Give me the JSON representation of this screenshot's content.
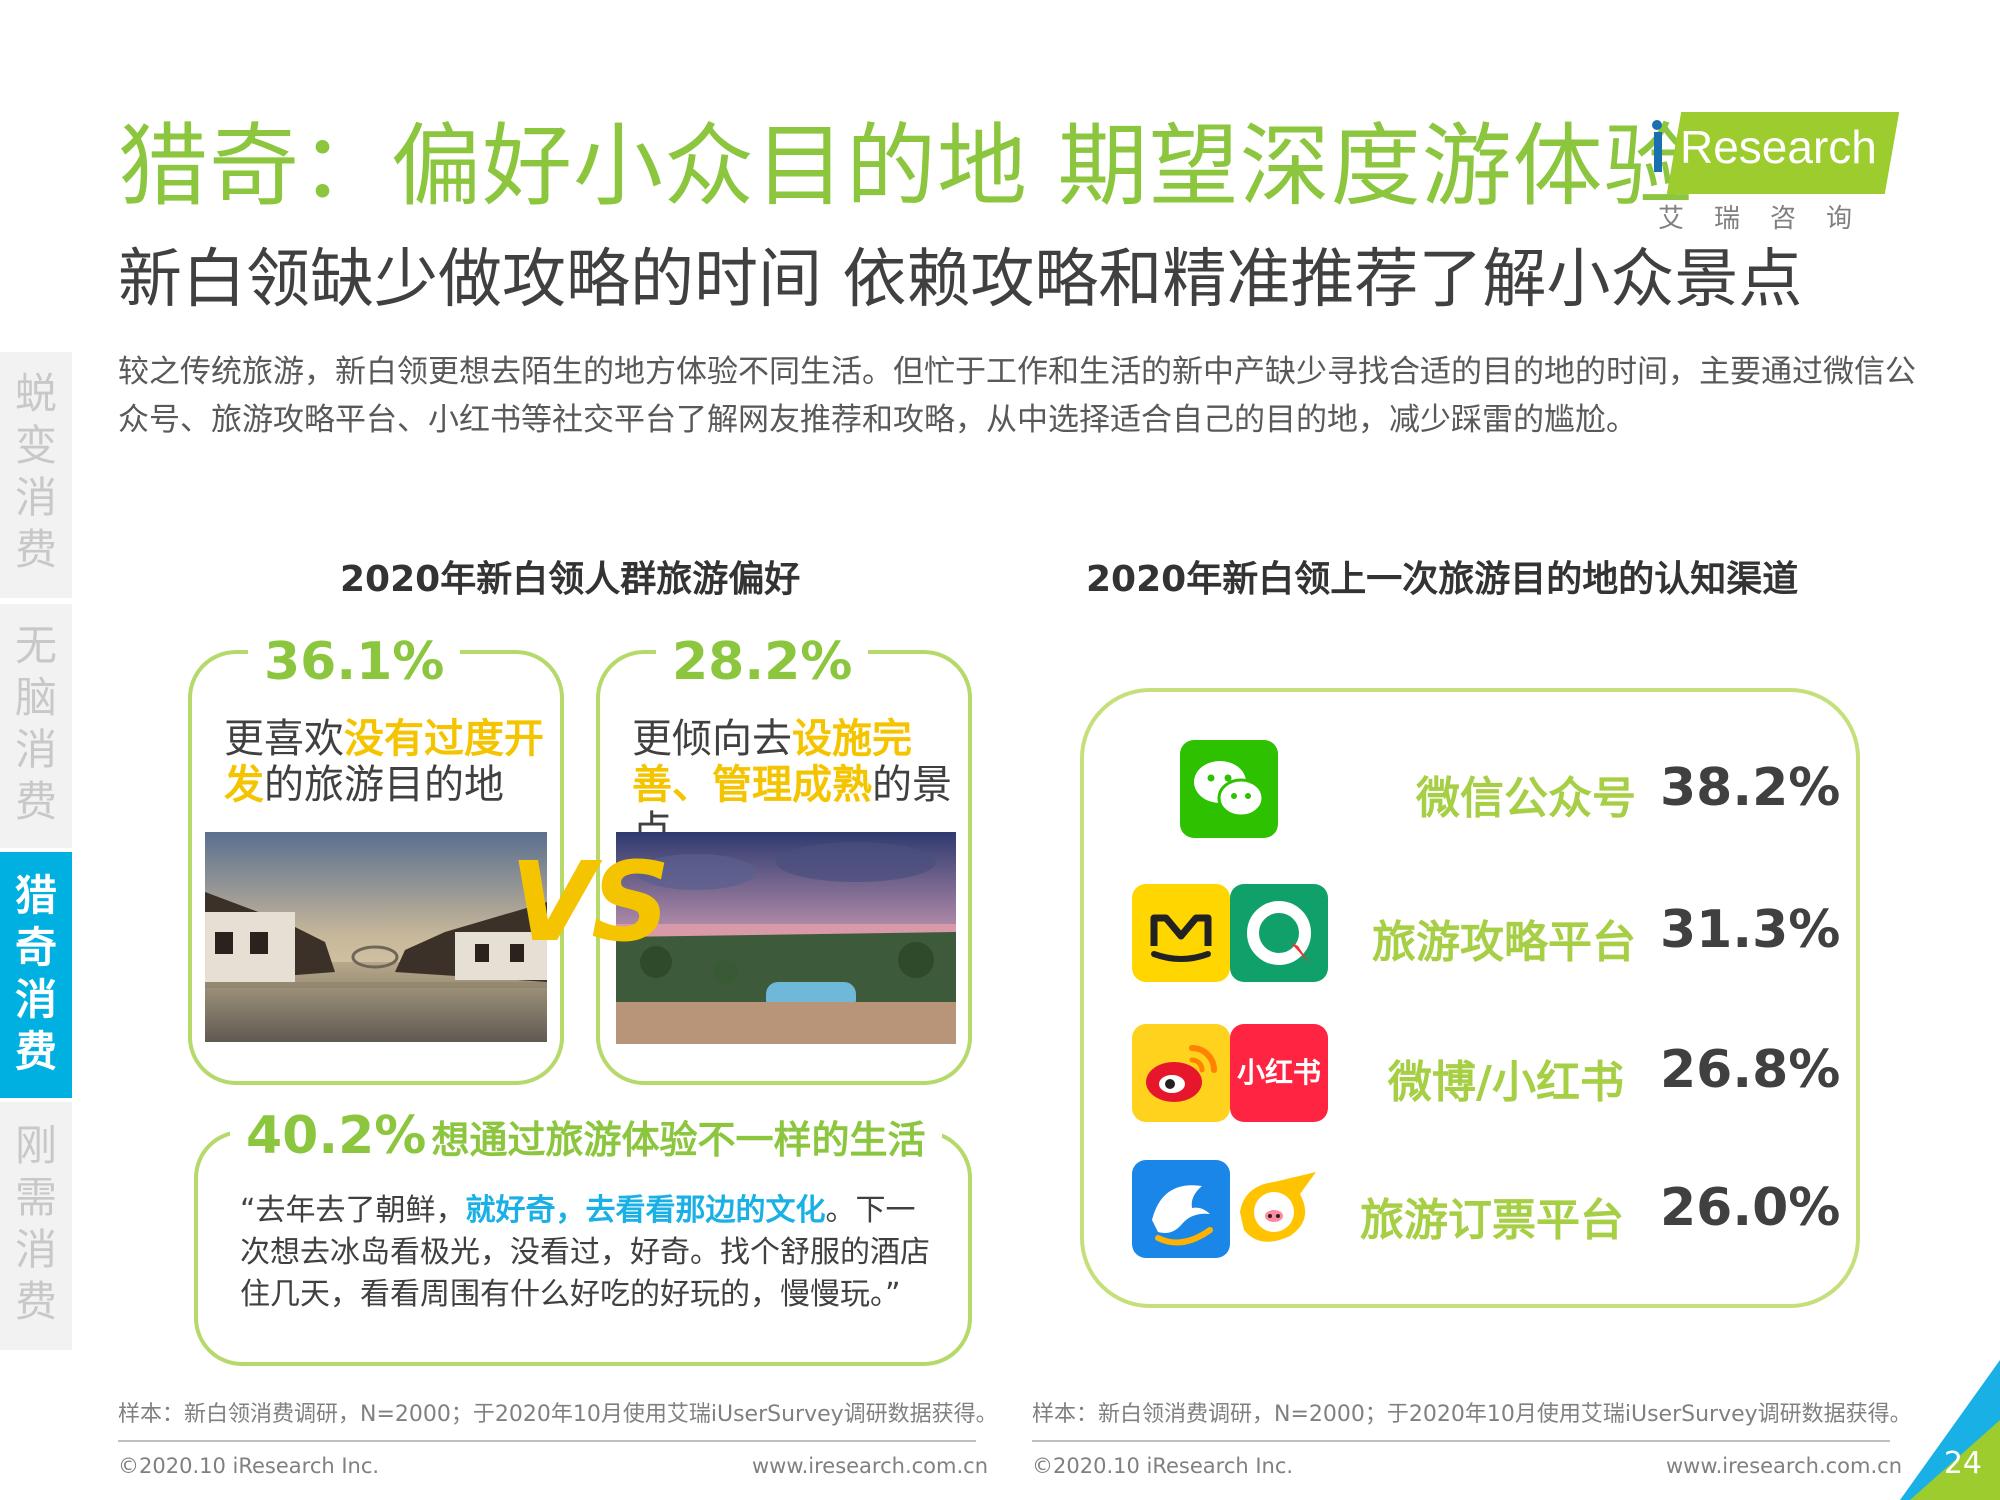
{
  "header": {
    "title": "猎奇：偏好小众目的地 期望深度游体验",
    "subtitle": "新白领缺少做攻略的时间 依赖攻略和精准推荐了解小众景点",
    "intro": "较之传统旅游，新白领更想去陌生的地方体验不同生活。但忙于工作和生活的新中产缺少寻找合适的目的地的时间，主要通过微信公众号、旅游攻略平台、小红书等社交平台了解网友推荐和攻略，从中选择适合自己的目的地，减少踩雷的尴尬。"
  },
  "logo": {
    "text": "Research",
    "cn": "艾瑞咨询"
  },
  "side_nav": [
    {
      "label": "蜕变消费",
      "active": false
    },
    {
      "label": "无脑消费",
      "active": false
    },
    {
      "label": "猎奇消费",
      "active": true
    },
    {
      "label": "刚需消费",
      "active": false
    }
  ],
  "left_panel": {
    "title": "2020年新白领人群旅游偏好",
    "card1": {
      "pct": "36.1%",
      "pre": "更喜欢",
      "highlight": "没有过度开发",
      "post": "的旅游目的地"
    },
    "card2": {
      "pct": "28.2%",
      "pre": "更倾向去",
      "highlight": "设施完善、管理成熟",
      "post": "的景点"
    },
    "vs": "VS",
    "card3": {
      "pct": "40.2%",
      "label": "想通过旅游体验不一样的生活",
      "quote_pre": "“去年去了朝鲜，",
      "quote_highlight": "就好奇，去看看那边的文化",
      "quote_post": "。下一次想去冰岛看极光，没看过，好奇。找个舒服的酒店住几天，看看周围有什么好吃的好玩的，慢慢玩。”"
    },
    "note": "样本：新白领消费调研，N=2000；于2020年10月使用艾瑞iUserSurvey调研数据获得。",
    "footer_left": "©2020.10 iResearch Inc.",
    "footer_right": "www.iresearch.com.cn"
  },
  "right_panel": {
    "title": "2020年新白领上一次旅游目的地的认知渠道",
    "channels": [
      {
        "name": "微信公众号",
        "value": "38.2%",
        "icons": [
          "wechat-icon"
        ]
      },
      {
        "name": "旅游攻略平台",
        "value": "31.3%",
        "icons": [
          "mafengwo-icon",
          "qyer-icon"
        ]
      },
      {
        "name": "微博/小红书",
        "value": "26.8%",
        "icons": [
          "weibo-icon",
          "xiaohongshu-icon"
        ]
      },
      {
        "name": "旅游订票平台",
        "value": "26.0%",
        "icons": [
          "ctrip-icon",
          "fliggy-icon"
        ]
      }
    ],
    "xiaohongshu_label": "小红书",
    "note": "样本：新白领消费调研，N=2000；于2020年10月使用艾瑞iUserSurvey调研数据获得。",
    "footer_left": "©2020.10 iResearch Inc.",
    "footer_right": "www.iresearch.com.cn"
  },
  "page_number": "24",
  "colors": {
    "accent_green": "#8cc63f",
    "highlight_yellow": "#f5c400",
    "highlight_blue": "#19b0e6",
    "nav_active": "#00b0e0"
  }
}
